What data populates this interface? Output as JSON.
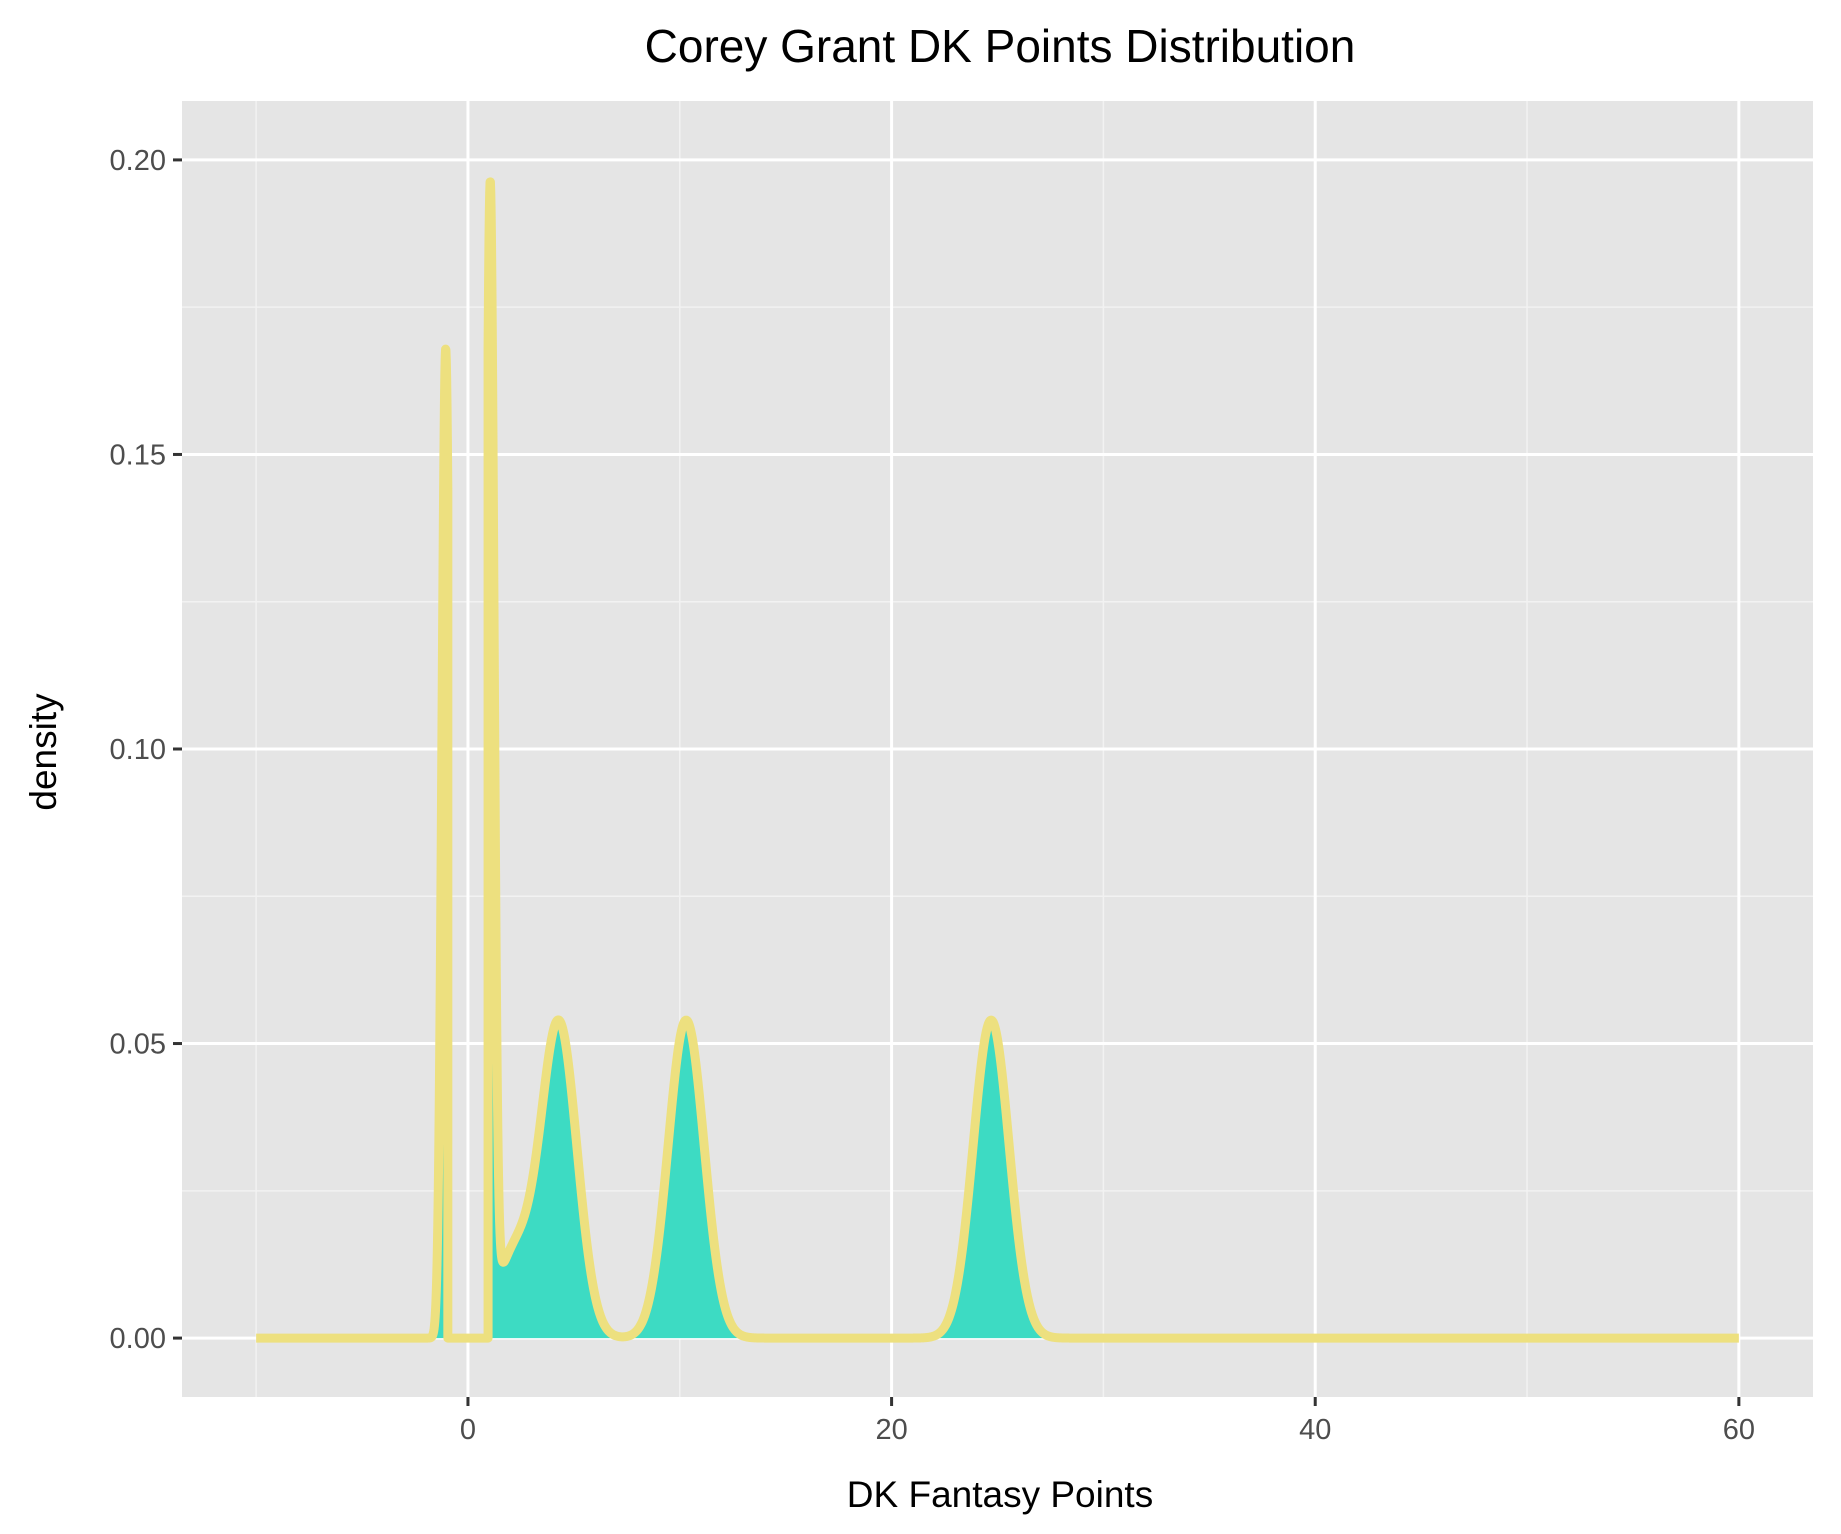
{
  "chart_data": {
    "type": "area",
    "title": "Corey Grant DK Points Distribution",
    "xlabel": "DK Fantasy Points",
    "ylabel": "density",
    "xlim": [
      -13.5,
      63.5
    ],
    "ylim": [
      -0.01,
      0.21
    ],
    "x_ticks": [
      {
        "value": 0,
        "label": "0"
      },
      {
        "value": 20,
        "label": "20"
      },
      {
        "value": 40,
        "label": "40"
      },
      {
        "value": 60,
        "label": "60"
      }
    ],
    "x_minor_ticks": [
      -10,
      10,
      30,
      50
    ],
    "y_ticks": [
      {
        "value": 0.0,
        "label": "0.00"
      },
      {
        "value": 0.05,
        "label": "0.05"
      },
      {
        "value": 0.1,
        "label": "0.10"
      },
      {
        "value": 0.15,
        "label": "0.15"
      },
      {
        "value": 0.2,
        "label": "0.20"
      }
    ],
    "y_minor_ticks": [
      0.025,
      0.075,
      0.125,
      0.175
    ],
    "grid": true,
    "legend": "none",
    "colors": {
      "panel_background": "#e5e5e5",
      "grid_major": "#ffffff",
      "grid_minor": "#f2f2f2",
      "fill": "#3ddbc3",
      "line": "#ede07f",
      "tick_mark": "#333333"
    },
    "series": [
      {
        "domain": [
          -10,
          60
        ],
        "gap": [
          -0.95,
          0.95
        ],
        "components": [
          {
            "mean": -1.05,
            "sd": 0.18,
            "weight": 0.0758
          },
          {
            "mean": 1.05,
            "sd": 0.18,
            "weight": 0.0858
          },
          {
            "mean": 2.2,
            "sd": 0.9,
            "weight": 0.032
          },
          {
            "mean": 4.3,
            "sd": 0.85,
            "weight": 0.113
          },
          {
            "mean": 10.3,
            "sd": 0.85,
            "weight": 0.115
          },
          {
            "mean": 24.7,
            "sd": 0.85,
            "weight": 0.115
          }
        ]
      }
    ]
  }
}
